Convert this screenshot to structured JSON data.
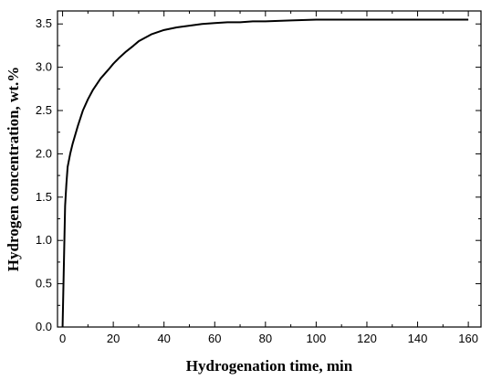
{
  "chart_data": {
    "type": "line",
    "xlabel": "Hydrogenation time, min",
    "ylabel": "Hydrogen concentration, wt.%",
    "xlim": [
      -2,
      165
    ],
    "ylim": [
      0,
      3.65
    ],
    "x_ticks": [
      0,
      20,
      40,
      60,
      80,
      100,
      120,
      140,
      160
    ],
    "y_ticks": [
      0.0,
      0.5,
      1.0,
      1.5,
      2.0,
      2.5,
      3.0,
      3.5
    ],
    "x_tick_labels": [
      "0",
      "20",
      "40",
      "60",
      "80",
      "100",
      "120",
      "140",
      "160"
    ],
    "y_tick_labels": [
      "0.0",
      "0.5",
      "1.0",
      "1.5",
      "2.0",
      "2.5",
      "3.0",
      "3.5"
    ],
    "grid": false,
    "series": [
      {
        "color": "#000000",
        "x": [
          0,
          0.5,
          1,
          1.5,
          2,
          3,
          4,
          6,
          8,
          10,
          12,
          15,
          18,
          20,
          22,
          25,
          28,
          30,
          35,
          40,
          45,
          50,
          55,
          60,
          65,
          70,
          75,
          80,
          90,
          100,
          110,
          120,
          130,
          140,
          150,
          160
        ],
        "y": [
          0.0,
          0.7,
          1.4,
          1.65,
          1.85,
          2.0,
          2.12,
          2.32,
          2.5,
          2.63,
          2.74,
          2.87,
          2.97,
          3.04,
          3.1,
          3.18,
          3.25,
          3.3,
          3.38,
          3.43,
          3.46,
          3.48,
          3.5,
          3.51,
          3.52,
          3.52,
          3.53,
          3.53,
          3.54,
          3.55,
          3.55,
          3.55,
          3.55,
          3.55,
          3.55,
          3.55
        ]
      }
    ]
  }
}
